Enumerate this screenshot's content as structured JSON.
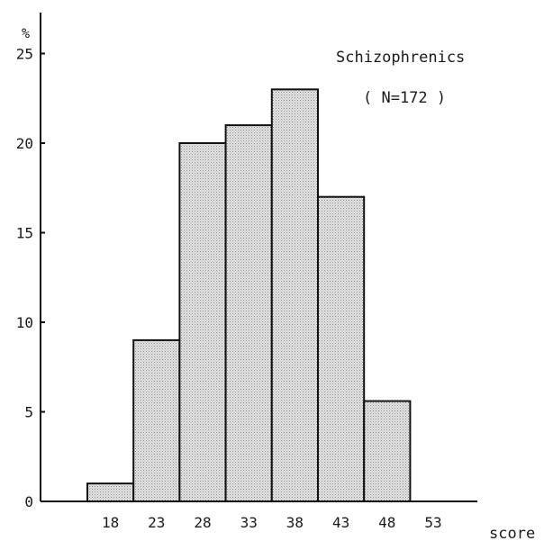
{
  "chart_data": {
    "type": "bar",
    "title": "Schizophrenics",
    "subtitle": "( N=172 )",
    "y_unit_label": "%",
    "xlabel": "score",
    "ylabel": "",
    "categories": [
      "18",
      "23",
      "28",
      "33",
      "38",
      "43",
      "48",
      "53"
    ],
    "values": [
      1,
      9,
      20,
      21,
      23,
      17,
      5.6,
      0
    ],
    "ylim": [
      0,
      25
    ],
    "y_ticks": [
      0,
      5,
      10,
      15,
      20,
      25
    ],
    "grid": false,
    "legend": "none",
    "colors": {
      "bar_fill": "#d4d4d4",
      "bar_stroke": "#111111",
      "axis": "#111111"
    }
  }
}
